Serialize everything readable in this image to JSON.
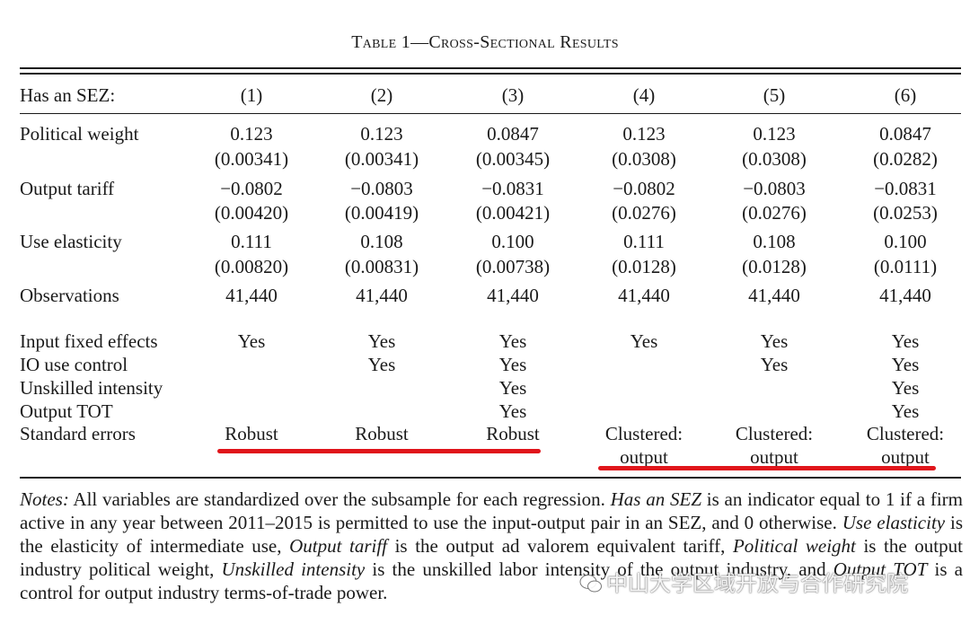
{
  "table": {
    "title": "Table 1—Cross-Sectional Results",
    "header": {
      "label": "Has an SEZ:",
      "columns": [
        "(1)",
        "(2)",
        "(3)",
        "(4)",
        "(5)",
        "(6)"
      ]
    },
    "rows": [
      {
        "label": "Political weight",
        "coef": [
          "0.123",
          "0.123",
          "0.0847",
          "0.123",
          "0.123",
          "0.0847"
        ],
        "se": [
          "(0.00341)",
          "(0.00341)",
          "(0.00345)",
          "(0.0308)",
          "(0.0308)",
          "(0.0282)"
        ]
      },
      {
        "label": "Output tariff",
        "coef": [
          "−0.0802",
          "−0.0803",
          "−0.0831",
          "−0.0802",
          "−0.0803",
          "−0.0831"
        ],
        "se": [
          "(0.00420)",
          "(0.00419)",
          "(0.00421)",
          "(0.0276)",
          "(0.0276)",
          "(0.0253)"
        ]
      },
      {
        "label": "Use elasticity",
        "coef": [
          "0.111",
          "0.108",
          "0.100",
          "0.111",
          "0.108",
          "0.100"
        ],
        "se": [
          "(0.00820)",
          "(0.00831)",
          "(0.00738)",
          "(0.0128)",
          "(0.0128)",
          "(0.0111)"
        ]
      },
      {
        "label": "Observations",
        "values": [
          "41,440",
          "41,440",
          "41,440",
          "41,440",
          "41,440",
          "41,440"
        ]
      }
    ],
    "controls": [
      {
        "label": "Input fixed effects",
        "values": [
          "Yes",
          "Yes",
          "Yes",
          "Yes",
          "Yes",
          "Yes"
        ]
      },
      {
        "label": "IO use control",
        "values": [
          "",
          "Yes",
          "Yes",
          "",
          "Yes",
          "Yes"
        ]
      },
      {
        "label": "Unskilled intensity",
        "values": [
          "",
          "",
          "Yes",
          "",
          "",
          "Yes"
        ]
      },
      {
        "label": "Output TOT",
        "values": [
          "",
          "",
          "Yes",
          "",
          "",
          "Yes"
        ]
      },
      {
        "label": "Standard errors",
        "values": [
          "Robust",
          "Robust",
          "Robust",
          "Clustered:",
          "Clustered:",
          "Clustered:"
        ],
        "values2": [
          "",
          "",
          "",
          "output",
          "output",
          "output"
        ]
      }
    ]
  },
  "notes": {
    "notes_label": "Notes:",
    "t1": " All variables are standardized over the subsample for each regression. ",
    "i1": "Has an SEZ",
    "t2": " is an indicator equal to 1 if a firm active in any year between 2011–2015 is permitted to use the input-output pair in an SEZ, and 0 otherwise. ",
    "i2": "Use elasticity",
    "t3": " is the elasticity of intermediate use, ",
    "i3": "Output tariff",
    "t4": " is the output ad valorem equivalent tariff, ",
    "i4": "Political weight",
    "t5": " is the output industry political weight, ",
    "i5": "Unskilled intensity",
    "t6": " is the unskilled labor intensity of the output industry, and ",
    "i6": "Output TOT",
    "t7": " is a control for output industry terms-of-trade power."
  },
  "watermark": {
    "text": "中山大学区域开放与合作研究院",
    "icon": "wechat-icon"
  },
  "annotations": {
    "underline_color": "#e0151b"
  }
}
